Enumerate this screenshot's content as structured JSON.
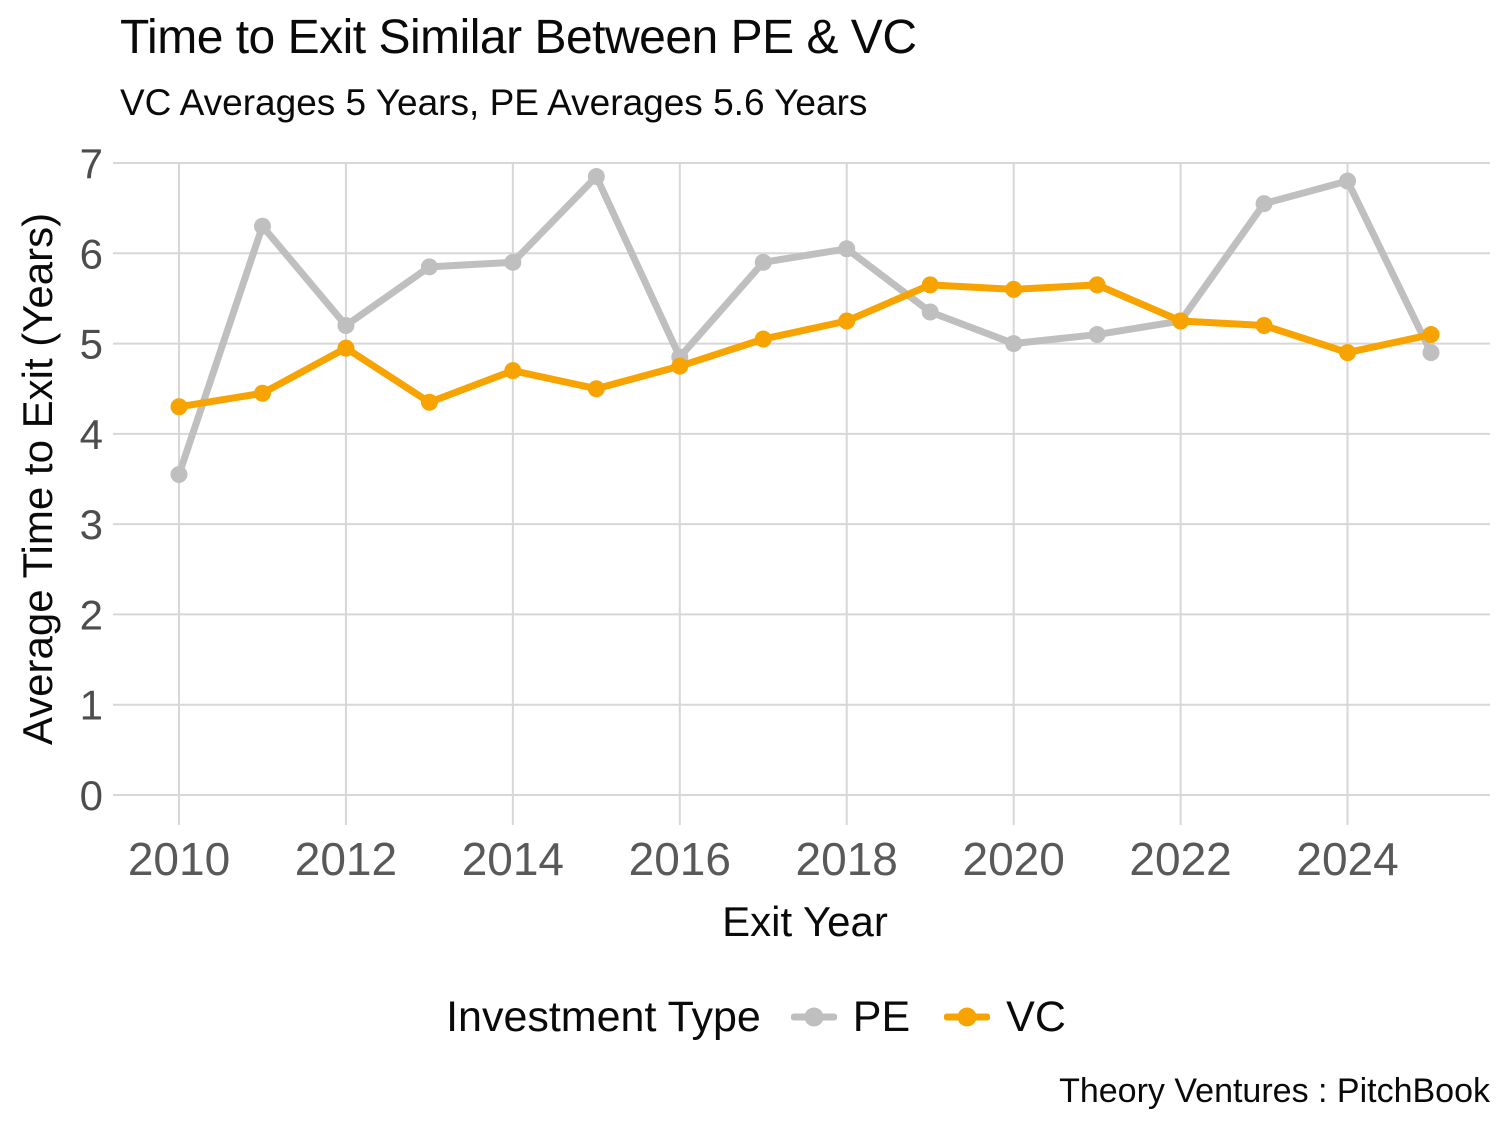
{
  "title": "Time to Exit Similar Between PE & VC",
  "subtitle": "VC Averages 5 Years, PE Averages 5.6 Years",
  "source": "Theory Ventures : PitchBook",
  "legend": {
    "title": "Investment Type",
    "items": [
      {
        "label": "PE",
        "color": "#bfbfbf"
      },
      {
        "label": "VC",
        "color": "#f7a402"
      }
    ]
  },
  "colors": {
    "grid": "#d7d7d7",
    "ytick": "#4d4d4d",
    "xtick": "#595959",
    "text": "#0a0a0a",
    "pe": "#bfbfbf",
    "vc": "#f7a402"
  },
  "chart_data": {
    "type": "line",
    "x": [
      2010,
      2011,
      2012,
      2013,
      2014,
      2015,
      2016,
      2017,
      2018,
      2019,
      2020,
      2021,
      2022,
      2023,
      2024,
      2025
    ],
    "series": [
      {
        "name": "PE",
        "color": "#bfbfbf",
        "values": [
          3.55,
          6.3,
          5.2,
          5.85,
          5.9,
          6.85,
          4.85,
          5.9,
          6.05,
          5.35,
          5.0,
          5.1,
          5.25,
          6.55,
          6.8,
          4.9
        ]
      },
      {
        "name": "VC",
        "color": "#f7a402",
        "values": [
          4.3,
          4.45,
          4.95,
          4.35,
          4.7,
          4.5,
          4.75,
          5.05,
          5.25,
          5.65,
          5.6,
          5.65,
          5.25,
          5.2,
          4.9,
          5.1
        ]
      }
    ],
    "title": "Time to Exit Similar Between PE & VC",
    "subtitle": "VC Averages 5 Years, PE Averages 5.6 Years",
    "xlabel": "Exit Year",
    "ylabel": "Average Time to Exit (Years)",
    "xlim": [
      2010,
      2025
    ],
    "ylim": [
      0,
      7
    ],
    "xticks": [
      2010,
      2012,
      2014,
      2016,
      2018,
      2020,
      2022,
      2024
    ],
    "yticks": [
      0,
      1,
      2,
      3,
      4,
      5,
      6,
      7
    ],
    "grid": true,
    "legend_position": "bottom"
  }
}
